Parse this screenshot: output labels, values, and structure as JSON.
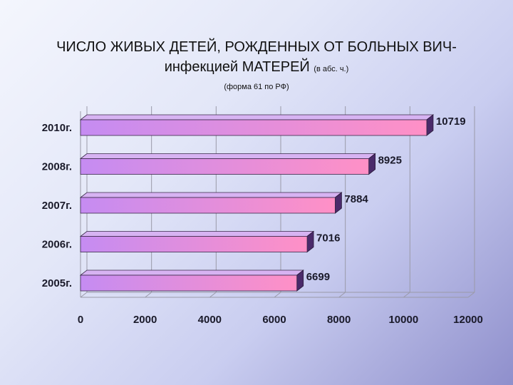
{
  "title": {
    "line1": "ЧИСЛО ЖИВЫХ ДЕТЕЙ, РОЖДЕННЫХ ОТ БОЛЬНЫХ ВИЧ-",
    "line2_main": "инфекцией МАТЕРЕЙ",
    "line2_unit": "(в абс. ч.)"
  },
  "subtitle": "(форма 61 по РФ)",
  "colors": {
    "bar_start": "#c58cf2",
    "bar_end": "#ff90c6",
    "bar_top": "#d7b3f2",
    "bar_side": "#4a2a6a",
    "grid": "#9a9aa8"
  },
  "chart_data": {
    "type": "bar",
    "orientation": "horizontal",
    "style": "3d",
    "categories": [
      "2010г.",
      "2008г.",
      "2007г.",
      "2006г.",
      "2005г."
    ],
    "values": [
      10719,
      8925,
      7884,
      7016,
      6699
    ],
    "value_labels": [
      "10719",
      "8925",
      "7884",
      "7016",
      "6699"
    ],
    "xlim": [
      0,
      12000
    ],
    "xticks": [
      0,
      2000,
      4000,
      6000,
      8000,
      10000,
      12000
    ],
    "xtick_labels": [
      "0",
      "2000",
      "4000",
      "6000",
      "8000",
      "10000",
      "12000"
    ],
    "grid": true
  }
}
